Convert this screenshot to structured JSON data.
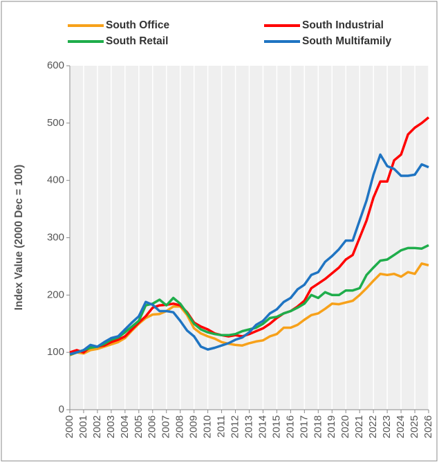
{
  "chart_data": {
    "type": "line",
    "y_label": "Index Value (2000 Dec = 100)",
    "x": [
      2000,
      2000.5,
      2001,
      2001.5,
      2002,
      2002.5,
      2003,
      2003.5,
      2004,
      2004.5,
      2005,
      2005.5,
      2006,
      2006.5,
      2007,
      2007.5,
      2008,
      2008.5,
      2009,
      2009.5,
      2010,
      2010.5,
      2011,
      2011.5,
      2012,
      2012.5,
      2013,
      2013.5,
      2014,
      2014.5,
      2015,
      2015.5,
      2016,
      2016.5,
      2017,
      2017.5,
      2018,
      2018.5,
      2019,
      2019.5,
      2020,
      2020.5,
      2021,
      2021.5,
      2022,
      2022.5,
      2023,
      2023.5,
      2024,
      2024.5,
      2025,
      2025.5,
      2026
    ],
    "series": [
      {
        "name": "South Office",
        "color": "#f7a11a",
        "values": [
          95,
          100,
          98,
          104,
          106,
          110,
          114,
          118,
          125,
          138,
          150,
          160,
          166,
          167,
          172,
          180,
          180,
          165,
          142,
          133,
          128,
          124,
          118,
          115,
          113,
          112,
          116,
          119,
          121,
          128,
          132,
          143,
          143,
          148,
          157,
          165,
          168,
          176,
          185,
          184,
          187,
          190,
          200,
          212,
          225,
          237,
          235,
          237,
          232,
          240,
          237,
          255,
          252
        ]
      },
      {
        "name": "South Industrial",
        "color": "#ff0000",
        "values": [
          100,
          104,
          100,
          110,
          110,
          112,
          118,
          122,
          128,
          140,
          152,
          163,
          178,
          182,
          183,
          185,
          182,
          170,
          152,
          145,
          140,
          133,
          130,
          128,
          130,
          128,
          132,
          137,
          142,
          150,
          160,
          168,
          172,
          180,
          190,
          212,
          220,
          228,
          238,
          248,
          262,
          270,
          300,
          330,
          370,
          398,
          398,
          435,
          445,
          480,
          492,
          500,
          510
        ]
      },
      {
        "name": "South Retail",
        "color": "#1fad4b",
        "values": [
          96,
          100,
          104,
          108,
          110,
          115,
          122,
          126,
          135,
          145,
          155,
          182,
          185,
          192,
          182,
          195,
          185,
          168,
          150,
          140,
          135,
          132,
          130,
          130,
          132,
          137,
          140,
          143,
          150,
          160,
          162,
          168,
          172,
          178,
          185,
          200,
          195,
          205,
          200,
          200,
          208,
          208,
          212,
          235,
          248,
          260,
          262,
          270,
          278,
          282,
          282,
          281,
          287
        ]
      },
      {
        "name": "South Multifamily",
        "color": "#1f74c2",
        "values": [
          97,
          100,
          104,
          113,
          110,
          118,
          125,
          128,
          140,
          152,
          163,
          188,
          183,
          172,
          172,
          170,
          155,
          138,
          128,
          110,
          105,
          108,
          112,
          116,
          122,
          126,
          135,
          148,
          155,
          168,
          175,
          188,
          195,
          210,
          218,
          235,
          240,
          258,
          268,
          280,
          295,
          295,
          330,
          365,
          410,
          445,
          425,
          420,
          408,
          408,
          410,
          428,
          423
        ]
      }
    ],
    "xlim": [
      2000,
      2026
    ],
    "xticks": [
      2000,
      2001,
      2002,
      2003,
      2004,
      2005,
      2006,
      2007,
      2008,
      2009,
      2010,
      2011,
      2012,
      2013,
      2014,
      2015,
      2016,
      2017,
      2018,
      2019,
      2020,
      2021,
      2022,
      2023,
      2024,
      2025,
      2026
    ],
    "ylim": [
      0,
      600
    ],
    "yticks": [
      0,
      100,
      200,
      300,
      400,
      500,
      600
    ],
    "grid": true
  }
}
